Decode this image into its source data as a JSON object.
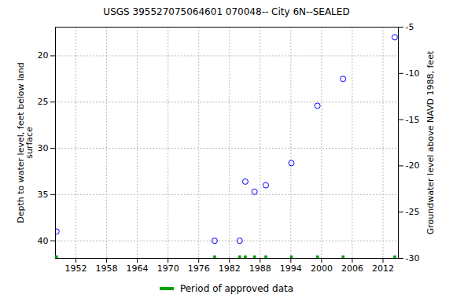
{
  "chart_data": {
    "type": "scatter",
    "title": "USGS 395527075064601 070048-- City 6N--SEALED",
    "y_label": "Depth to water level, feet below land\nsurface",
    "y2_label": "Groundwater level above NAVD 1988, feet",
    "x": [
      1948.2,
      1979.1,
      1984.0,
      1985.1,
      1986.9,
      1989.1,
      1994.1,
      1999.2,
      2004.2,
      2014.3
    ],
    "series": [
      {
        "values": [
          39.0,
          40.0,
          40.0,
          33.6,
          34.7,
          34.0,
          31.6,
          25.4,
          22.5,
          18.0
        ],
        "color": "#0000ff",
        "marker": "circle"
      },
      {
        "name": "Period of approved data",
        "type": "tick",
        "color": "#00a000",
        "x": [
          1948.2,
          1979.1,
          1984.0,
          1985.1,
          1986.9,
          1989.1,
          1994.1,
          1999.2,
          2004.2,
          2014.3
        ]
      }
    ],
    "xlim": [
      1948,
      2015
    ],
    "xticks": [
      1952,
      1958,
      1964,
      1970,
      1976,
      1982,
      1988,
      1994,
      2000,
      2006,
      2012
    ],
    "ylim": [
      16.9,
      41.9
    ],
    "yticks": [
      20,
      25,
      30,
      35,
      40
    ],
    "y2lim": [
      -30,
      -5
    ],
    "y2ticks": [
      -30,
      -25,
      -20,
      -15,
      -10,
      -5
    ],
    "grid": true,
    "legend": "bottom"
  }
}
